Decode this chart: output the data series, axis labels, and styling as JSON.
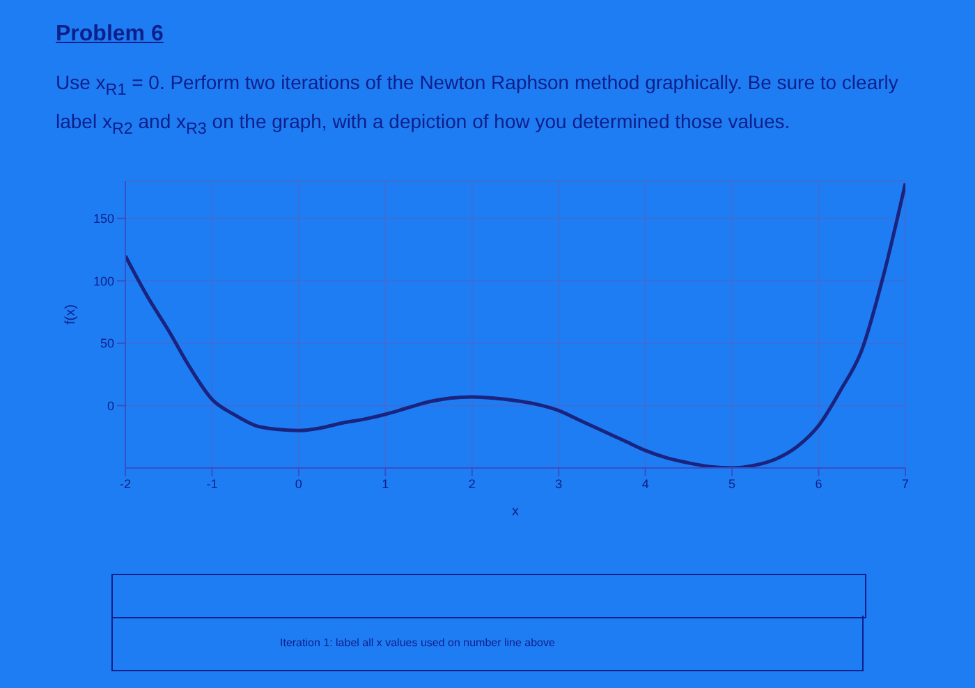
{
  "chart_data": {
    "type": "line",
    "title": "Problem 6",
    "subtitle": "Use x$_{R1}$ = 0. Perform two iterations of the Newton Raphson method graphically. Be sure to clearly label x$_{R2}$ and x$_{R3}$ on the graph, with a depiction of how you determined those values.",
    "xlabel": "x",
    "ylabel": "f(x)",
    "x": [
      -2,
      -1.75,
      -1.5,
      -1.25,
      -1,
      -0.75,
      -0.5,
      -0.25,
      0,
      0.25,
      0.5,
      0.75,
      1,
      1.25,
      1.5,
      1.75,
      2,
      2.25,
      2.5,
      2.75,
      3,
      3.25,
      3.5,
      3.75,
      4,
      4.25,
      4.5,
      4.75,
      5,
      5.25,
      5.5,
      5.75,
      6,
      6.25,
      6.5,
      6.75,
      7
    ],
    "series": [
      {
        "color": "#1a237e",
        "values": [
          120,
          88,
          60,
          30,
          5,
          -7,
          -16,
          -19,
          -20,
          -18,
          -14,
          -11,
          -7,
          -2,
          3,
          6,
          7,
          6,
          4,
          1,
          -4,
          -12,
          -20,
          -28,
          -36,
          -42,
          -46,
          -49,
          -50,
          -48,
          -43,
          -33,
          -16,
          12,
          45,
          105,
          178
        ]
      }
    ],
    "xlim": [
      -2,
      7
    ],
    "xticks": [
      -2,
      -1,
      0,
      1,
      2,
      3,
      4,
      5,
      6,
      7
    ],
    "ylim": [
      -50,
      180
    ],
    "yticks": [
      0,
      50,
      100,
      150
    ],
    "grid": true,
    "legend": false,
    "annotations": [
      "Iteration 1: label all x values used on number line above"
    ]
  }
}
